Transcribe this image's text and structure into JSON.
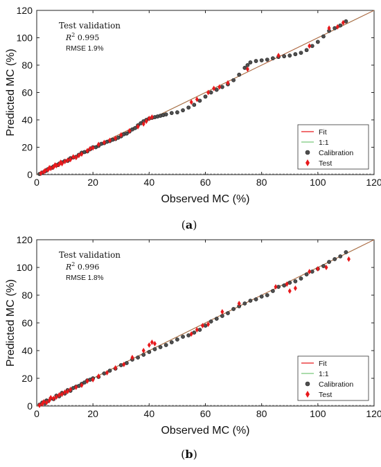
{
  "chart_data": [
    {
      "type": "scatter",
      "caption": "(a)",
      "xlabel": "Observed MC (%)",
      "ylabel": "Predicted MC (%)",
      "xlim": [
        0,
        120
      ],
      "ylim": [
        0,
        120
      ],
      "xticks": [
        0,
        20,
        40,
        60,
        80,
        100,
        120
      ],
      "yticks": [
        0,
        20,
        40,
        60,
        80,
        100,
        120
      ],
      "annotation": {
        "title": "Test validation",
        "r2_label": "R",
        "r2_sup": "2",
        "r2_value": "0.995",
        "rmse": "RMSE 1.9%"
      },
      "legend": {
        "position": "bottom-right",
        "entries": [
          "Fit",
          "1:1",
          "Calibration",
          "Test"
        ]
      },
      "colors": {
        "fit": "#e8191c",
        "one_to_one": "#79c67a",
        "calibration": "#4f4f4f",
        "test": "#e8191c"
      },
      "fit_line": [
        [
          0,
          0
        ],
        [
          120,
          120
        ]
      ],
      "one_to_one_line": [
        [
          0,
          0
        ],
        [
          120,
          120
        ]
      ],
      "series": [
        {
          "name": "Calibration",
          "marker": "circle",
          "points": [
            [
              1,
              0.5
            ],
            [
              2,
              1.5
            ],
            [
              3,
              2.5
            ],
            [
              3.5,
              3
            ],
            [
              4,
              4
            ],
            [
              5,
              5
            ],
            [
              5.5,
              5
            ],
            [
              6,
              6
            ],
            [
              7,
              7
            ],
            [
              7.5,
              7
            ],
            [
              8,
              8
            ],
            [
              9,
              9
            ],
            [
              10,
              10
            ],
            [
              11,
              10
            ],
            [
              11.5,
              11
            ],
            [
              12,
              12
            ],
            [
              13,
              12.5
            ],
            [
              14,
              13
            ],
            [
              15,
              14.5
            ],
            [
              16,
              16
            ],
            [
              17,
              16.5
            ],
            [
              18,
              17
            ],
            [
              19,
              18.5
            ],
            [
              20,
              20
            ],
            [
              21,
              20
            ],
            [
              22,
              21
            ],
            [
              23,
              22.5
            ],
            [
              24,
              23
            ],
            [
              25,
              24
            ],
            [
              26,
              24.5
            ],
            [
              27,
              25.5
            ],
            [
              28,
              26
            ],
            [
              29,
              27
            ],
            [
              30,
              28
            ],
            [
              31,
              29.5
            ],
            [
              32,
              30
            ],
            [
              33,
              31.5
            ],
            [
              34,
              33
            ],
            [
              35,
              34
            ],
            [
              36,
              36
            ],
            [
              37,
              37.5
            ],
            [
              38,
              39
            ],
            [
              39,
              40
            ],
            [
              40,
              41
            ],
            [
              41,
              41.5
            ],
            [
              42,
              42
            ],
            [
              43,
              42.5
            ],
            [
              44,
              43
            ],
            [
              45,
              43.5
            ],
            [
              46,
              44
            ],
            [
              48,
              45
            ],
            [
              50,
              45.5
            ],
            [
              52,
              47
            ],
            [
              54,
              49
            ],
            [
              56,
              51
            ],
            [
              58,
              54
            ],
            [
              60,
              57
            ],
            [
              62,
              60
            ],
            [
              64,
              62
            ],
            [
              66,
              64
            ],
            [
              68,
              66
            ],
            [
              70,
              69
            ],
            [
              72,
              73
            ],
            [
              74,
              78
            ],
            [
              75,
              80
            ],
            [
              76,
              82
            ],
            [
              78,
              83
            ],
            [
              80,
              83.5
            ],
            [
              82,
              84
            ],
            [
              84,
              85
            ],
            [
              86,
              86
            ],
            [
              88,
              86.5
            ],
            [
              90,
              87
            ],
            [
              92,
              88
            ],
            [
              94,
              89
            ],
            [
              96,
              91
            ],
            [
              98,
              94
            ],
            [
              100,
              97
            ],
            [
              102,
              101
            ],
            [
              104,
              105
            ],
            [
              106,
              107
            ],
            [
              108,
              109
            ],
            [
              110,
              112
            ]
          ]
        },
        {
          "name": "Test",
          "marker": "diamond",
          "points": [
            [
              1.5,
              1
            ],
            [
              2.5,
              2
            ],
            [
              3,
              3
            ],
            [
              4,
              3.5
            ],
            [
              4.5,
              5
            ],
            [
              5,
              4.5
            ],
            [
              6,
              5.5
            ],
            [
              6.5,
              7
            ],
            [
              7,
              6.5
            ],
            [
              8,
              7.5
            ],
            [
              8.5,
              9
            ],
            [
              9,
              8
            ],
            [
              10,
              9.5
            ],
            [
              11,
              10.5
            ],
            [
              12,
              11
            ],
            [
              13,
              13
            ],
            [
              14,
              12.5
            ],
            [
              15,
              14
            ],
            [
              16,
              15
            ],
            [
              18,
              17.5
            ],
            [
              19,
              19
            ],
            [
              20,
              19.5
            ],
            [
              22,
              22
            ],
            [
              24,
              23.5
            ],
            [
              26,
              25
            ],
            [
              28,
              26.5
            ],
            [
              30,
              29
            ],
            [
              33,
              32
            ],
            [
              36,
              35
            ],
            [
              38,
              37
            ],
            [
              39,
              39
            ],
            [
              40,
              41
            ],
            [
              41,
              42
            ],
            [
              55,
              53
            ],
            [
              57,
              55
            ],
            [
              61,
              60
            ],
            [
              63,
              63
            ],
            [
              65,
              64
            ],
            [
              68,
              67
            ],
            [
              75,
              77
            ],
            [
              86,
              87
            ],
            [
              97,
              94
            ],
            [
              104,
              107
            ],
            [
              107,
              108
            ],
            [
              109,
              111
            ]
          ]
        }
      ]
    },
    {
      "type": "scatter",
      "caption": "(b)",
      "xlabel": "Observed MC (%)",
      "ylabel": "Predicted MC (%)",
      "xlim": [
        0,
        120
      ],
      "ylim": [
        0,
        120
      ],
      "xticks": [
        0,
        20,
        40,
        60,
        80,
        100,
        120
      ],
      "yticks": [
        0,
        20,
        40,
        60,
        80,
        100,
        120
      ],
      "annotation": {
        "title": "Test validation",
        "r2_label": "R",
        "r2_sup": "2",
        "r2_value": "0.996",
        "rmse": "RMSE 1.8%"
      },
      "legend": {
        "position": "bottom-right",
        "entries": [
          "Fit",
          "1:1",
          "Calibration",
          "Test"
        ]
      },
      "colors": {
        "fit": "#e8191c",
        "one_to_one": "#79c67a",
        "calibration": "#4f4f4f",
        "test": "#e8191c"
      },
      "fit_line": [
        [
          0,
          0
        ],
        [
          120,
          120
        ]
      ],
      "one_to_one_line": [
        [
          0,
          0
        ],
        [
          120,
          120
        ]
      ],
      "series": [
        {
          "name": "Calibration",
          "marker": "circle",
          "points": [
            [
              1,
              1
            ],
            [
              2,
              2.5
            ],
            [
              3,
              2
            ],
            [
              3.5,
              4
            ],
            [
              4,
              3.5
            ],
            [
              5,
              5.5
            ],
            [
              6,
              5
            ],
            [
              7,
              7.5
            ],
            [
              8,
              7
            ],
            [
              9,
              9.5
            ],
            [
              10,
              9
            ],
            [
              11,
              11.5
            ],
            [
              12,
              11
            ],
            [
              13,
              13
            ],
            [
              14,
              14
            ],
            [
              15,
              14.5
            ],
            [
              16,
              16
            ],
            [
              17,
              17
            ],
            [
              18,
              18.5
            ],
            [
              19,
              19
            ],
            [
              20,
              20
            ],
            [
              22,
              21
            ],
            [
              24,
              23.5
            ],
            [
              26,
              25.5
            ],
            [
              28,
              27
            ],
            [
              30,
              29.5
            ],
            [
              32,
              31
            ],
            [
              34,
              33.5
            ],
            [
              36,
              35
            ],
            [
              38,
              37
            ],
            [
              40,
              39
            ],
            [
              42,
              41
            ],
            [
              44,
              42.5
            ],
            [
              46,
              44
            ],
            [
              48,
              46
            ],
            [
              50,
              48
            ],
            [
              52,
              50
            ],
            [
              54,
              51
            ],
            [
              56,
              53
            ],
            [
              58,
              55
            ],
            [
              60,
              58
            ],
            [
              62,
              61
            ],
            [
              64,
              63
            ],
            [
              66,
              65
            ],
            [
              68,
              67
            ],
            [
              70,
              70
            ],
            [
              72,
              72
            ],
            [
              74,
              74
            ],
            [
              76,
              76
            ],
            [
              78,
              77
            ],
            [
              80,
              79
            ],
            [
              82,
              80
            ],
            [
              84,
              83
            ],
            [
              86,
              86
            ],
            [
              88,
              87
            ],
            [
              90,
              89
            ],
            [
              92,
              90
            ],
            [
              94,
              92
            ],
            [
              96,
              95
            ],
            [
              98,
              97
            ],
            [
              100,
              99
            ],
            [
              102,
              101
            ],
            [
              104,
              104
            ],
            [
              106,
              106
            ],
            [
              108,
              108
            ],
            [
              110,
              111
            ]
          ]
        },
        {
          "name": "Test",
          "marker": "diamond",
          "points": [
            [
              1,
              0.5
            ],
            [
              2,
              1.5
            ],
            [
              2.5,
              3
            ],
            [
              3.5,
              2.5
            ],
            [
              4.5,
              4
            ],
            [
              5,
              6
            ],
            [
              6,
              5.5
            ],
            [
              7,
              6.5
            ],
            [
              8,
              8
            ],
            [
              9,
              8.5
            ],
            [
              10,
              10
            ],
            [
              11,
              10.5
            ],
            [
              12,
              12
            ],
            [
              14,
              13.5
            ],
            [
              16,
              15
            ],
            [
              18,
              18
            ],
            [
              20,
              19
            ],
            [
              22,
              21.5
            ],
            [
              25,
              24
            ],
            [
              28,
              27.5
            ],
            [
              31,
              30
            ],
            [
              34,
              35
            ],
            [
              38,
              40
            ],
            [
              40,
              44
            ],
            [
              41,
              46
            ],
            [
              42,
              45
            ],
            [
              55,
              52
            ],
            [
              57,
              55
            ],
            [
              59,
              58
            ],
            [
              61,
              59
            ],
            [
              66,
              68
            ],
            [
              72,
              74
            ],
            [
              85,
              86
            ],
            [
              89,
              88
            ],
            [
              90,
              83
            ],
            [
              92,
              85
            ],
            [
              97,
              97
            ],
            [
              100,
              99
            ],
            [
              103,
              100
            ],
            [
              111,
              106
            ]
          ]
        }
      ]
    }
  ]
}
